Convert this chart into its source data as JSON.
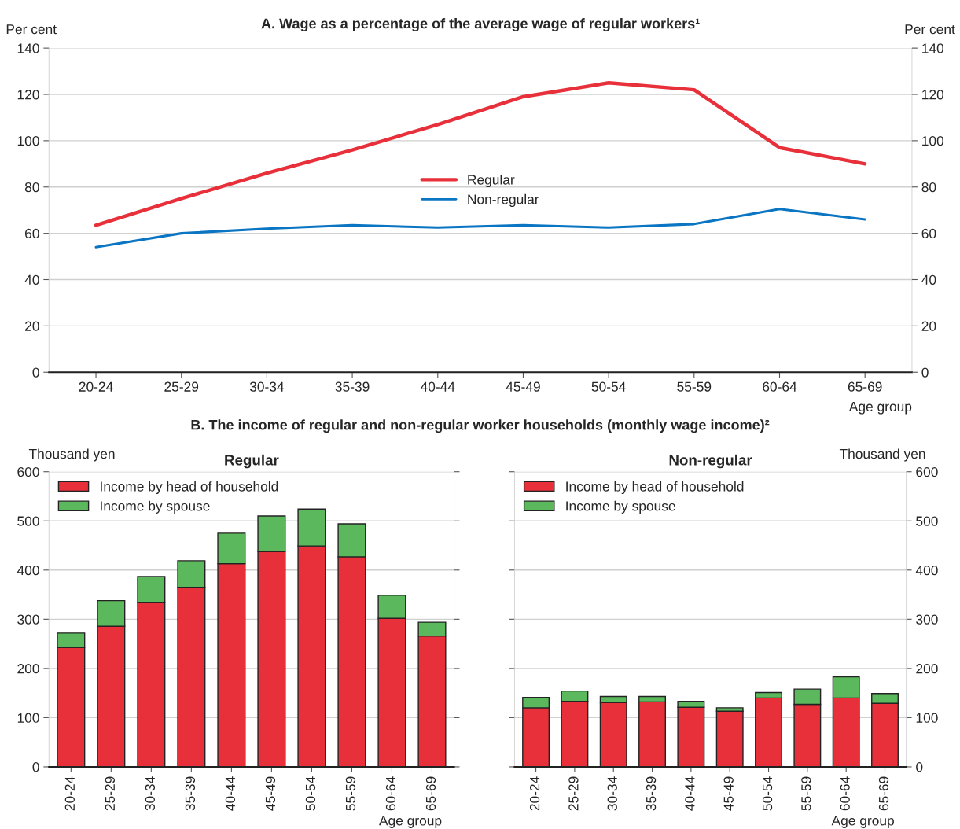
{
  "chart_data": [
    {
      "type": "line",
      "title": "A. Wage as a percentage of the average wage of regular workers¹",
      "xlabel": "Age group",
      "ylabel": "Per cent",
      "y2label": "Per cent",
      "categories": [
        "20-24",
        "25-29",
        "30-34",
        "35-39",
        "40-44",
        "45-49",
        "50-54",
        "55-59",
        "60-64",
        "65-69"
      ],
      "series": [
        {
          "name": "Regular",
          "color": "#e8303a",
          "values": [
            63.5,
            75,
            86,
            96,
            107,
            119,
            125,
            122,
            97,
            90
          ]
        },
        {
          "name": "Non-regular",
          "color": "#0a75c2",
          "values": [
            54,
            60,
            62,
            63.5,
            62.5,
            63.5,
            62.5,
            64,
            70.5,
            66
          ]
        }
      ],
      "ylim": [
        0,
        140
      ],
      "yticks": [
        0,
        20,
        40,
        60,
        80,
        100,
        120,
        140
      ],
      "y2lim": [
        0,
        140
      ],
      "y2ticks": [
        0,
        20,
        40,
        60,
        80,
        100,
        120,
        140
      ],
      "grid": "y",
      "legend": "center"
    },
    {
      "type": "bar",
      "stacked": true,
      "title": "B. The income of regular and non-regular worker households (monthly wage income)²",
      "subtitle": "Regular",
      "xlabel": "Age group",
      "ylabel": "Thousand yen",
      "categories": [
        "20-24",
        "25-29",
        "30-34",
        "35-39",
        "40-44",
        "45-49",
        "50-54",
        "55-59",
        "60-64",
        "65-69"
      ],
      "series": [
        {
          "name": "Income by head of household",
          "color": "#e8303a",
          "values": [
            243,
            286,
            334,
            365,
            413,
            438,
            449,
            427,
            302,
            266
          ]
        },
        {
          "name": "Income by spouse",
          "color": "#5cb85c",
          "values": [
            29,
            52,
            53,
            54,
            62,
            72,
            75,
            67,
            47,
            28
          ]
        }
      ],
      "ylim": [
        0,
        600
      ],
      "yticks": [
        0,
        100,
        200,
        300,
        400,
        500,
        600
      ],
      "grid": "y",
      "legend": "top left"
    },
    {
      "type": "bar",
      "stacked": true,
      "title": "Non-regular",
      "xlabel": "Age group",
      "y2label": "Thousand yen",
      "categories": [
        "20-24",
        "25-29",
        "30-34",
        "35-39",
        "40-44",
        "45-49",
        "50-54",
        "55-59",
        "60-64",
        "65-69"
      ],
      "series": [
        {
          "name": "Income by head of household",
          "color": "#e8303a",
          "axis": "y2",
          "values": [
            120,
            133,
            131,
            132,
            121,
            113,
            140,
            127,
            140,
            129
          ]
        },
        {
          "name": "Income by spouse",
          "color": "#5cb85c",
          "axis": "y2",
          "values": [
            21,
            21,
            12,
            11,
            12,
            7,
            11,
            31,
            43,
            20
          ]
        }
      ],
      "y2lim": [
        0,
        600
      ],
      "y2ticks": [
        0,
        100,
        200,
        300,
        400,
        500,
        600
      ],
      "grid": "y",
      "legend": "top left"
    }
  ]
}
